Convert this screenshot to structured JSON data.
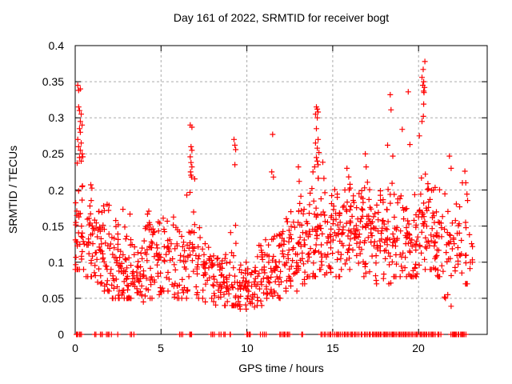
{
  "chart_data": {
    "type": "scatter",
    "title": "Day 161 of 2022, SRMTID for receiver bogt",
    "xlabel": "GPS time / hours",
    "ylabel": "SRMTID / TECUs",
    "xlim": [
      0,
      24
    ],
    "ylim": [
      0,
      0.4
    ],
    "xticks": [
      0,
      5,
      10,
      15,
      20
    ],
    "xtick_labels": [
      "0",
      "5",
      "10",
      "15",
      "20"
    ],
    "yticks": [
      0,
      0.05,
      0.1,
      0.15,
      0.2,
      0.25,
      0.3,
      0.35,
      0.4
    ],
    "ytick_labels": [
      "0",
      "0.05",
      "0.1",
      "0.15",
      "0.2",
      "0.25",
      "0.3",
      "0.35",
      "0.4"
    ],
    "grid": {
      "visible": true,
      "style": "dashed",
      "color": "#ababab"
    },
    "marker": {
      "shape": "plus",
      "color": "#ff0000",
      "size": 7
    },
    "series_name": "SRMTID",
    "legend": "none",
    "density_bins": [
      [
        0.0,
        0.5,
        38,
        0.09,
        0.35,
        0.14
      ],
      [
        0.5,
        1.0,
        24,
        0.08,
        0.22,
        0.13
      ],
      [
        1.0,
        1.5,
        28,
        0.07,
        0.19,
        0.12
      ],
      [
        1.5,
        2.0,
        30,
        0.06,
        0.22,
        0.11
      ],
      [
        2.0,
        2.5,
        28,
        0.05,
        0.16,
        0.095
      ],
      [
        2.5,
        3.0,
        30,
        0.05,
        0.21,
        0.09
      ],
      [
        3.0,
        3.5,
        30,
        0.05,
        0.19,
        0.085
      ],
      [
        3.5,
        4.0,
        28,
        0.045,
        0.13,
        0.08
      ],
      [
        4.0,
        4.5,
        30,
        0.05,
        0.225,
        0.09
      ],
      [
        4.5,
        5.0,
        26,
        0.055,
        0.18,
        0.1
      ],
      [
        5.0,
        5.5,
        22,
        0.06,
        0.19,
        0.11
      ],
      [
        5.5,
        6.0,
        22,
        0.05,
        0.17,
        0.1
      ],
      [
        6.0,
        6.5,
        20,
        0.05,
        0.18,
        0.1
      ],
      [
        6.5,
        7.0,
        26,
        0.06,
        0.24,
        0.12
      ],
      [
        7.0,
        7.5,
        22,
        0.05,
        0.16,
        0.095
      ],
      [
        7.5,
        8.0,
        22,
        0.045,
        0.14,
        0.085
      ],
      [
        8.0,
        8.5,
        26,
        0.04,
        0.12,
        0.075
      ],
      [
        8.5,
        9.0,
        26,
        0.04,
        0.115,
        0.07
      ],
      [
        9.0,
        9.5,
        24,
        0.04,
        0.19,
        0.07
      ],
      [
        9.5,
        10.0,
        26,
        0.035,
        0.1,
        0.065
      ],
      [
        10.0,
        10.5,
        26,
        0.035,
        0.11,
        0.06
      ],
      [
        10.5,
        11.0,
        26,
        0.04,
        0.15,
        0.07
      ],
      [
        11.0,
        11.5,
        26,
        0.05,
        0.15,
        0.085
      ],
      [
        11.5,
        12.0,
        28,
        0.05,
        0.16,
        0.095
      ],
      [
        12.0,
        12.5,
        28,
        0.06,
        0.18,
        0.105
      ],
      [
        12.5,
        13.0,
        28,
        0.06,
        0.19,
        0.115
      ],
      [
        13.0,
        13.5,
        28,
        0.07,
        0.21,
        0.13
      ],
      [
        13.5,
        14.0,
        30,
        0.08,
        0.25,
        0.14
      ],
      [
        14.0,
        14.5,
        30,
        0.09,
        0.25,
        0.15
      ],
      [
        14.5,
        15.0,
        28,
        0.08,
        0.22,
        0.14
      ],
      [
        15.0,
        15.5,
        28,
        0.08,
        0.22,
        0.14
      ],
      [
        15.5,
        16.0,
        28,
        0.09,
        0.23,
        0.15
      ],
      [
        16.0,
        16.5,
        30,
        0.09,
        0.22,
        0.15
      ],
      [
        16.5,
        17.0,
        30,
        0.08,
        0.25,
        0.15
      ],
      [
        17.0,
        17.5,
        28,
        0.08,
        0.22,
        0.14
      ],
      [
        17.5,
        18.0,
        28,
        0.07,
        0.21,
        0.13
      ],
      [
        18.0,
        18.5,
        26,
        0.07,
        0.22,
        0.13
      ],
      [
        18.5,
        19.0,
        26,
        0.08,
        0.23,
        0.135
      ],
      [
        19.0,
        19.5,
        26,
        0.08,
        0.22,
        0.13
      ],
      [
        19.5,
        20.0,
        26,
        0.08,
        0.21,
        0.13
      ],
      [
        20.0,
        20.5,
        30,
        0.09,
        0.27,
        0.16
      ],
      [
        20.5,
        21.0,
        28,
        0.09,
        0.24,
        0.15
      ],
      [
        21.0,
        21.5,
        24,
        0.08,
        0.22,
        0.13
      ],
      [
        21.5,
        22.0,
        20,
        0.05,
        0.25,
        0.12
      ],
      [
        22.0,
        22.5,
        20,
        0.06,
        0.19,
        0.12
      ],
      [
        22.5,
        23.0,
        16,
        0.07,
        0.21,
        0.13
      ],
      [
        23.0,
        23.2,
        5,
        0.1,
        0.16,
        0.12
      ]
    ],
    "outlier_points": [
      [
        0.15,
        0.345
      ],
      [
        0.2,
        0.338
      ],
      [
        0.3,
        0.34
      ],
      [
        0.2,
        0.315
      ],
      [
        0.25,
        0.31
      ],
      [
        0.35,
        0.305
      ],
      [
        0.3,
        0.295
      ],
      [
        0.4,
        0.29
      ],
      [
        0.25,
        0.285
      ],
      [
        0.3,
        0.28
      ],
      [
        0.15,
        0.27
      ],
      [
        0.35,
        0.265
      ],
      [
        0.2,
        0.26
      ],
      [
        0.3,
        0.255
      ],
      [
        0.4,
        0.25
      ],
      [
        0.25,
        0.245
      ],
      [
        0.35,
        0.24
      ],
      [
        6.7,
        0.29
      ],
      [
        6.8,
        0.287
      ],
      [
        6.75,
        0.26
      ],
      [
        6.8,
        0.255
      ],
      [
        6.7,
        0.246
      ],
      [
        6.75,
        0.238
      ],
      [
        6.8,
        0.232
      ],
      [
        6.72,
        0.225
      ],
      [
        6.78,
        0.218
      ],
      [
        9.25,
        0.27
      ],
      [
        9.3,
        0.262
      ],
      [
        9.35,
        0.256
      ],
      [
        9.3,
        0.235
      ],
      [
        11.5,
        0.277
      ],
      [
        11.45,
        0.225
      ],
      [
        11.55,
        0.218
      ],
      [
        13.0,
        0.232
      ],
      [
        13.05,
        0.212
      ],
      [
        14.05,
        0.315
      ],
      [
        14.1,
        0.312
      ],
      [
        14.15,
        0.308
      ],
      [
        14.0,
        0.305
      ],
      [
        14.1,
        0.3
      ],
      [
        14.05,
        0.285
      ],
      [
        14.15,
        0.27
      ],
      [
        14.0,
        0.265
      ],
      [
        14.1,
        0.258
      ],
      [
        14.2,
        0.252
      ],
      [
        14.05,
        0.245
      ],
      [
        14.1,
        0.24
      ],
      [
        14.15,
        0.235
      ],
      [
        13.95,
        0.232
      ],
      [
        16.9,
        0.25
      ],
      [
        16.95,
        0.232
      ],
      [
        18.35,
        0.332
      ],
      [
        18.4,
        0.311
      ],
      [
        18.2,
        0.262
      ],
      [
        18.5,
        0.247
      ],
      [
        19.05,
        0.284
      ],
      [
        19.4,
        0.336
      ],
      [
        19.5,
        0.263
      ],
      [
        20.37,
        0.378
      ],
      [
        20.27,
        0.367
      ],
      [
        20.2,
        0.356
      ],
      [
        20.3,
        0.35
      ],
      [
        20.25,
        0.345
      ],
      [
        20.35,
        0.342
      ],
      [
        20.3,
        0.337
      ],
      [
        20.32,
        0.335
      ],
      [
        20.3,
        0.319
      ],
      [
        20.28,
        0.302
      ],
      [
        20.2,
        0.295
      ],
      [
        20.05,
        0.275
      ],
      [
        21.8,
        0.247
      ],
      [
        21.9,
        0.23
      ],
      [
        21.9,
        0.039
      ],
      [
        22.7,
        0.226
      ],
      [
        22.75,
        0.21
      ]
    ],
    "zero_value_runs": [
      [
        0.05,
        0.35,
        6
      ],
      [
        1.15,
        1.2,
        2
      ],
      [
        1.45,
        1.6,
        3
      ],
      [
        1.8,
        2.1,
        4
      ],
      [
        2.5,
        2.5,
        1
      ],
      [
        3.2,
        3.4,
        3
      ],
      [
        6.1,
        6.25,
        3
      ],
      [
        6.65,
        6.8,
        3
      ],
      [
        7.9,
        8.1,
        4
      ],
      [
        8.4,
        8.75,
        4
      ],
      [
        9.0,
        9.05,
        2
      ],
      [
        10.0,
        10.2,
        4
      ],
      [
        10.8,
        11.1,
        4
      ],
      [
        11.9,
        12.5,
        8
      ],
      [
        13.2,
        13.25,
        2
      ],
      [
        14.3,
        15.2,
        10
      ],
      [
        15.3,
        16.1,
        10
      ],
      [
        16.15,
        17.4,
        14
      ],
      [
        17.45,
        18.3,
        12
      ],
      [
        18.35,
        19.2,
        12
      ],
      [
        19.25,
        20.3,
        14
      ],
      [
        20.35,
        20.9,
        8
      ],
      [
        21.0,
        21.3,
        4
      ],
      [
        21.9,
        22.2,
        6
      ],
      [
        22.3,
        22.75,
        8
      ]
    ]
  }
}
